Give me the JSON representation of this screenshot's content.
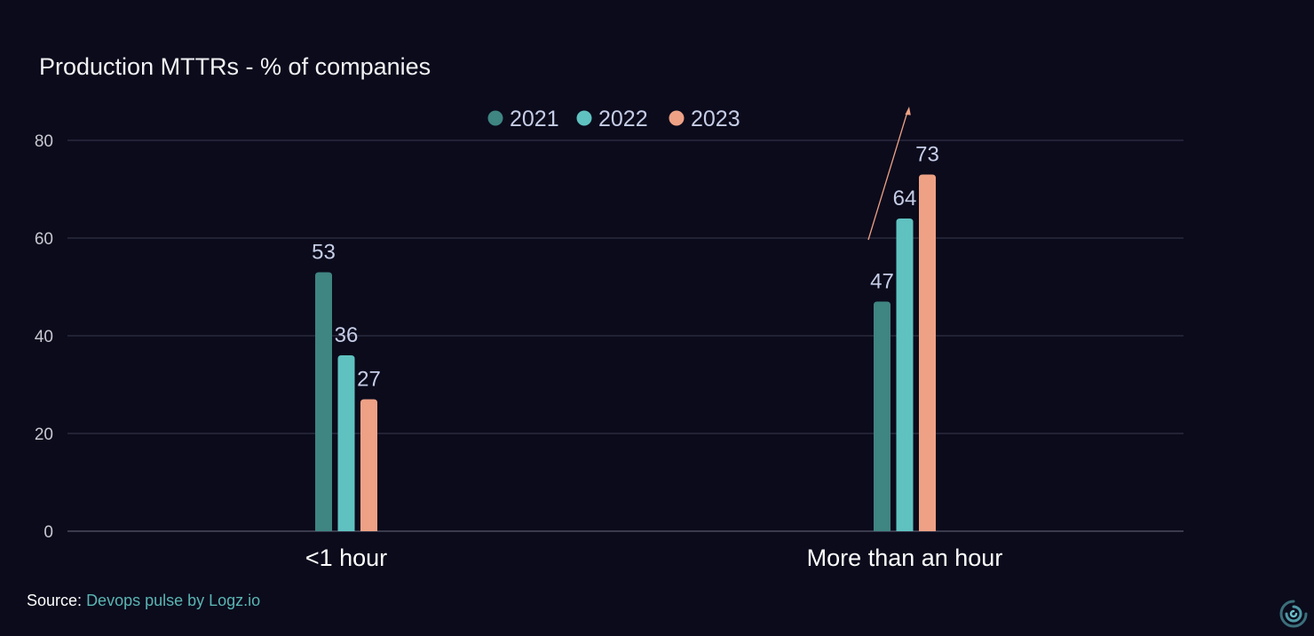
{
  "chart_data": {
    "type": "bar",
    "title": "Production MTTRs - % of companies",
    "categories": [
      "<1 hour",
      "More than an hour"
    ],
    "series": [
      {
        "name": "2021",
        "values": [
          53,
          47
        ],
        "color": "#3f8582"
      },
      {
        "name": "2022",
        "values": [
          36,
          64
        ],
        "color": "#5fc2c0"
      },
      {
        "name": "2023",
        "values": [
          27,
          73
        ],
        "color": "#eea185"
      }
    ],
    "ylim": [
      0,
      80
    ],
    "yticks": [
      0,
      20,
      40,
      60,
      80
    ],
    "xlabel": "",
    "ylabel": "",
    "grid": true,
    "legend_position": "top-center",
    "data_labels": true,
    "annotation": "upward trend arrow over More than an hour"
  },
  "source": {
    "prefix": "Source:",
    "text": "Devops pulse by Logz.io"
  },
  "colors": {
    "background": "#0b0b1c",
    "grid": "#3a3a4e",
    "tick_text": "#c8c8d0",
    "label_text": "#c6cde6",
    "arrow": "#eea185",
    "source_link": "#5bb5b4"
  },
  "logo": {
    "icon": "logz-spiral-logo-icon"
  }
}
